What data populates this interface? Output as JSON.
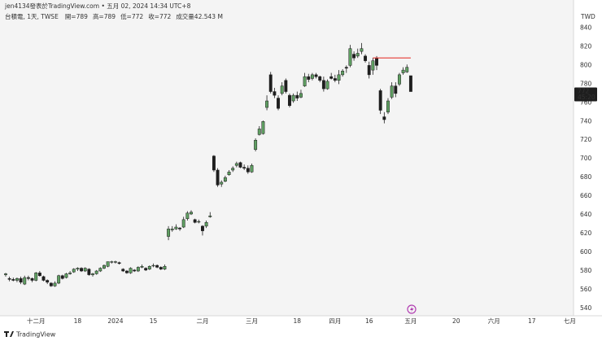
{
  "chart_data": {
    "type": "candlestick",
    "header": "jen4134發表於TradingView.com • 五月 02, 2024 14:34 UTC+8",
    "symbol": "台積電, 1天, TWSE",
    "legend_labels": [
      "開=",
      "高=",
      "低=",
      "收="
    ],
    "volume": "成交量42.543 M",
    "currency": "TWD",
    "countdown": "45:20",
    "brand": "TradingView",
    "up_color": "#5f9f62",
    "down_color": "#1e1e1e",
    "xlim": [
      -1.5,
      150
    ],
    "xticks": [
      {
        "value": 8,
        "label": "十二月"
      },
      {
        "value": 19,
        "label": "18"
      },
      {
        "value": 29,
        "label": "2024"
      },
      {
        "value": 39,
        "label": "15"
      },
      {
        "value": 52,
        "label": "二月"
      },
      {
        "value": 65,
        "label": "三月"
      },
      {
        "value": 77,
        "label": "18"
      },
      {
        "value": 87,
        "label": "四月"
      },
      {
        "value": 96,
        "label": "16"
      },
      {
        "value": 107,
        "label": "五月"
      },
      {
        "value": 119,
        "label": "20"
      },
      {
        "value": 129,
        "label": "六月"
      },
      {
        "value": 139,
        "label": "17"
      },
      {
        "value": 149,
        "label": "七月"
      }
    ],
    "ylim": [
      526,
      870
    ],
    "yticks": [
      540,
      560,
      580,
      600,
      620,
      640,
      660,
      680,
      700,
      720,
      740,
      760,
      780,
      800,
      820,
      840
    ],
    "hline": {
      "value": 808,
      "from": 97,
      "to": 107,
      "color": "#e53935"
    },
    "ohlc": [
      [
        576,
        578,
        574,
        577
      ],
      [
        572,
        574,
        569,
        571
      ],
      [
        571,
        573,
        569,
        570
      ],
      [
        570,
        573,
        568,
        572
      ],
      [
        572,
        574,
        566,
        568
      ],
      [
        566,
        575,
        565,
        573
      ],
      [
        573,
        575,
        570,
        572
      ],
      [
        572,
        573,
        568,
        570
      ],
      [
        570,
        579,
        569,
        578
      ],
      [
        578,
        580,
        574,
        575
      ],
      [
        574,
        575,
        569,
        570
      ],
      [
        570,
        571,
        566,
        568
      ],
      [
        567,
        568,
        563,
        564
      ],
      [
        564,
        569,
        563,
        567
      ],
      [
        567,
        576,
        566,
        575
      ],
      [
        575,
        576,
        571,
        572
      ],
      [
        573,
        578,
        572,
        577
      ],
      [
        577,
        580,
        576,
        578
      ],
      [
        579,
        583,
        578,
        582
      ],
      [
        582,
        584,
        580,
        583
      ],
      [
        583,
        584,
        579,
        580
      ],
      [
        580,
        584,
        579,
        583
      ],
      [
        582,
        583,
        575,
        576
      ],
      [
        576,
        578,
        574,
        577
      ],
      [
        577,
        581,
        576,
        580
      ],
      [
        580,
        584,
        579,
        583
      ],
      [
        583,
        587,
        582,
        586
      ],
      [
        585,
        590,
        584,
        590
      ],
      [
        590,
        591,
        588,
        590
      ],
      [
        590,
        591,
        588,
        590
      ],
      [
        589,
        590,
        587,
        588
      ],
      [
        582,
        583,
        579,
        580
      ],
      [
        580,
        581,
        577,
        578
      ],
      [
        578,
        584,
        577,
        583
      ],
      [
        581,
        582,
        579,
        580
      ],
      [
        580,
        585,
        579,
        584
      ],
      [
        584,
        587,
        583,
        585
      ],
      [
        583,
        584,
        580,
        581
      ],
      [
        582,
        586,
        581,
        585
      ],
      [
        586,
        588,
        584,
        586
      ],
      [
        586,
        587,
        583,
        584
      ],
      [
        584,
        585,
        581,
        582
      ],
      [
        582,
        587,
        581,
        585
      ],
      [
        617,
        628,
        613,
        625
      ],
      [
        624,
        628,
        622,
        625
      ],
      [
        625,
        630,
        624,
        627
      ],
      [
        626,
        627,
        623,
        625
      ],
      [
        627,
        638,
        626,
        635
      ],
      [
        636,
        644,
        634,
        642
      ],
      [
        641,
        645,
        640,
        643
      ],
      [
        635,
        636,
        631,
        632
      ],
      [
        633,
        635,
        631,
        633
      ],
      [
        628,
        629,
        618,
        623
      ],
      [
        628,
        634,
        626,
        632
      ],
      [
        638,
        643,
        637,
        639
      ],
      [
        703,
        704,
        686,
        688
      ],
      [
        688,
        690,
        670,
        672
      ],
      [
        673,
        677,
        670,
        675
      ],
      [
        676,
        682,
        675,
        680
      ],
      [
        683,
        688,
        682,
        686
      ],
      [
        688,
        692,
        686,
        690
      ],
      [
        693,
        697,
        691,
        695
      ],
      [
        696,
        697,
        690,
        691
      ],
      [
        691,
        694,
        688,
        690
      ],
      [
        690,
        693,
        684,
        686
      ],
      [
        686,
        695,
        685,
        693
      ],
      [
        710,
        722,
        708,
        720
      ],
      [
        726,
        735,
        725,
        732
      ],
      [
        727,
        741,
        726,
        740
      ],
      [
        755,
        768,
        752,
        762
      ],
      [
        790,
        793,
        770,
        772
      ],
      [
        772,
        776,
        765,
        768
      ],
      [
        765,
        768,
        752,
        754
      ],
      [
        770,
        782,
        768,
        778
      ],
      [
        784,
        786,
        770,
        772
      ],
      [
        768,
        770,
        755,
        757
      ],
      [
        762,
        770,
        760,
        768
      ],
      [
        768,
        772,
        762,
        765
      ],
      [
        766,
        774,
        765,
        770
      ],
      [
        778,
        792,
        777,
        788
      ],
      [
        788,
        791,
        782,
        785
      ],
      [
        786,
        792,
        784,
        790
      ],
      [
        790,
        792,
        786,
        788
      ],
      [
        788,
        789,
        782,
        784
      ],
      [
        784,
        788,
        772,
        775
      ],
      [
        775,
        785,
        774,
        783
      ],
      [
        788,
        792,
        785,
        786
      ],
      [
        786,
        790,
        782,
        784
      ],
      [
        784,
        795,
        780,
        790
      ],
      [
        790,
        796,
        788,
        794
      ],
      [
        798,
        800,
        792,
        797
      ],
      [
        800,
        822,
        798,
        818
      ],
      [
        812,
        815,
        805,
        808
      ],
      [
        810,
        818,
        808,
        813
      ],
      [
        815,
        824,
        812,
        818
      ],
      [
        810,
        812,
        803,
        805
      ],
      [
        800,
        804,
        786,
        790
      ],
      [
        795,
        808,
        790,
        805
      ],
      [
        808,
        810,
        795,
        800
      ],
      [
        773,
        775,
        748,
        752
      ],
      [
        745,
        750,
        738,
        742
      ],
      [
        750,
        765,
        748,
        762
      ],
      [
        766,
        782,
        764,
        778
      ],
      [
        778,
        782,
        766,
        770
      ],
      [
        780,
        792,
        778,
        790
      ],
      [
        792,
        798,
        790,
        795
      ],
      [
        793,
        801,
        792,
        798
      ],
      [
        789,
        789,
        772,
        772
      ]
    ]
  }
}
